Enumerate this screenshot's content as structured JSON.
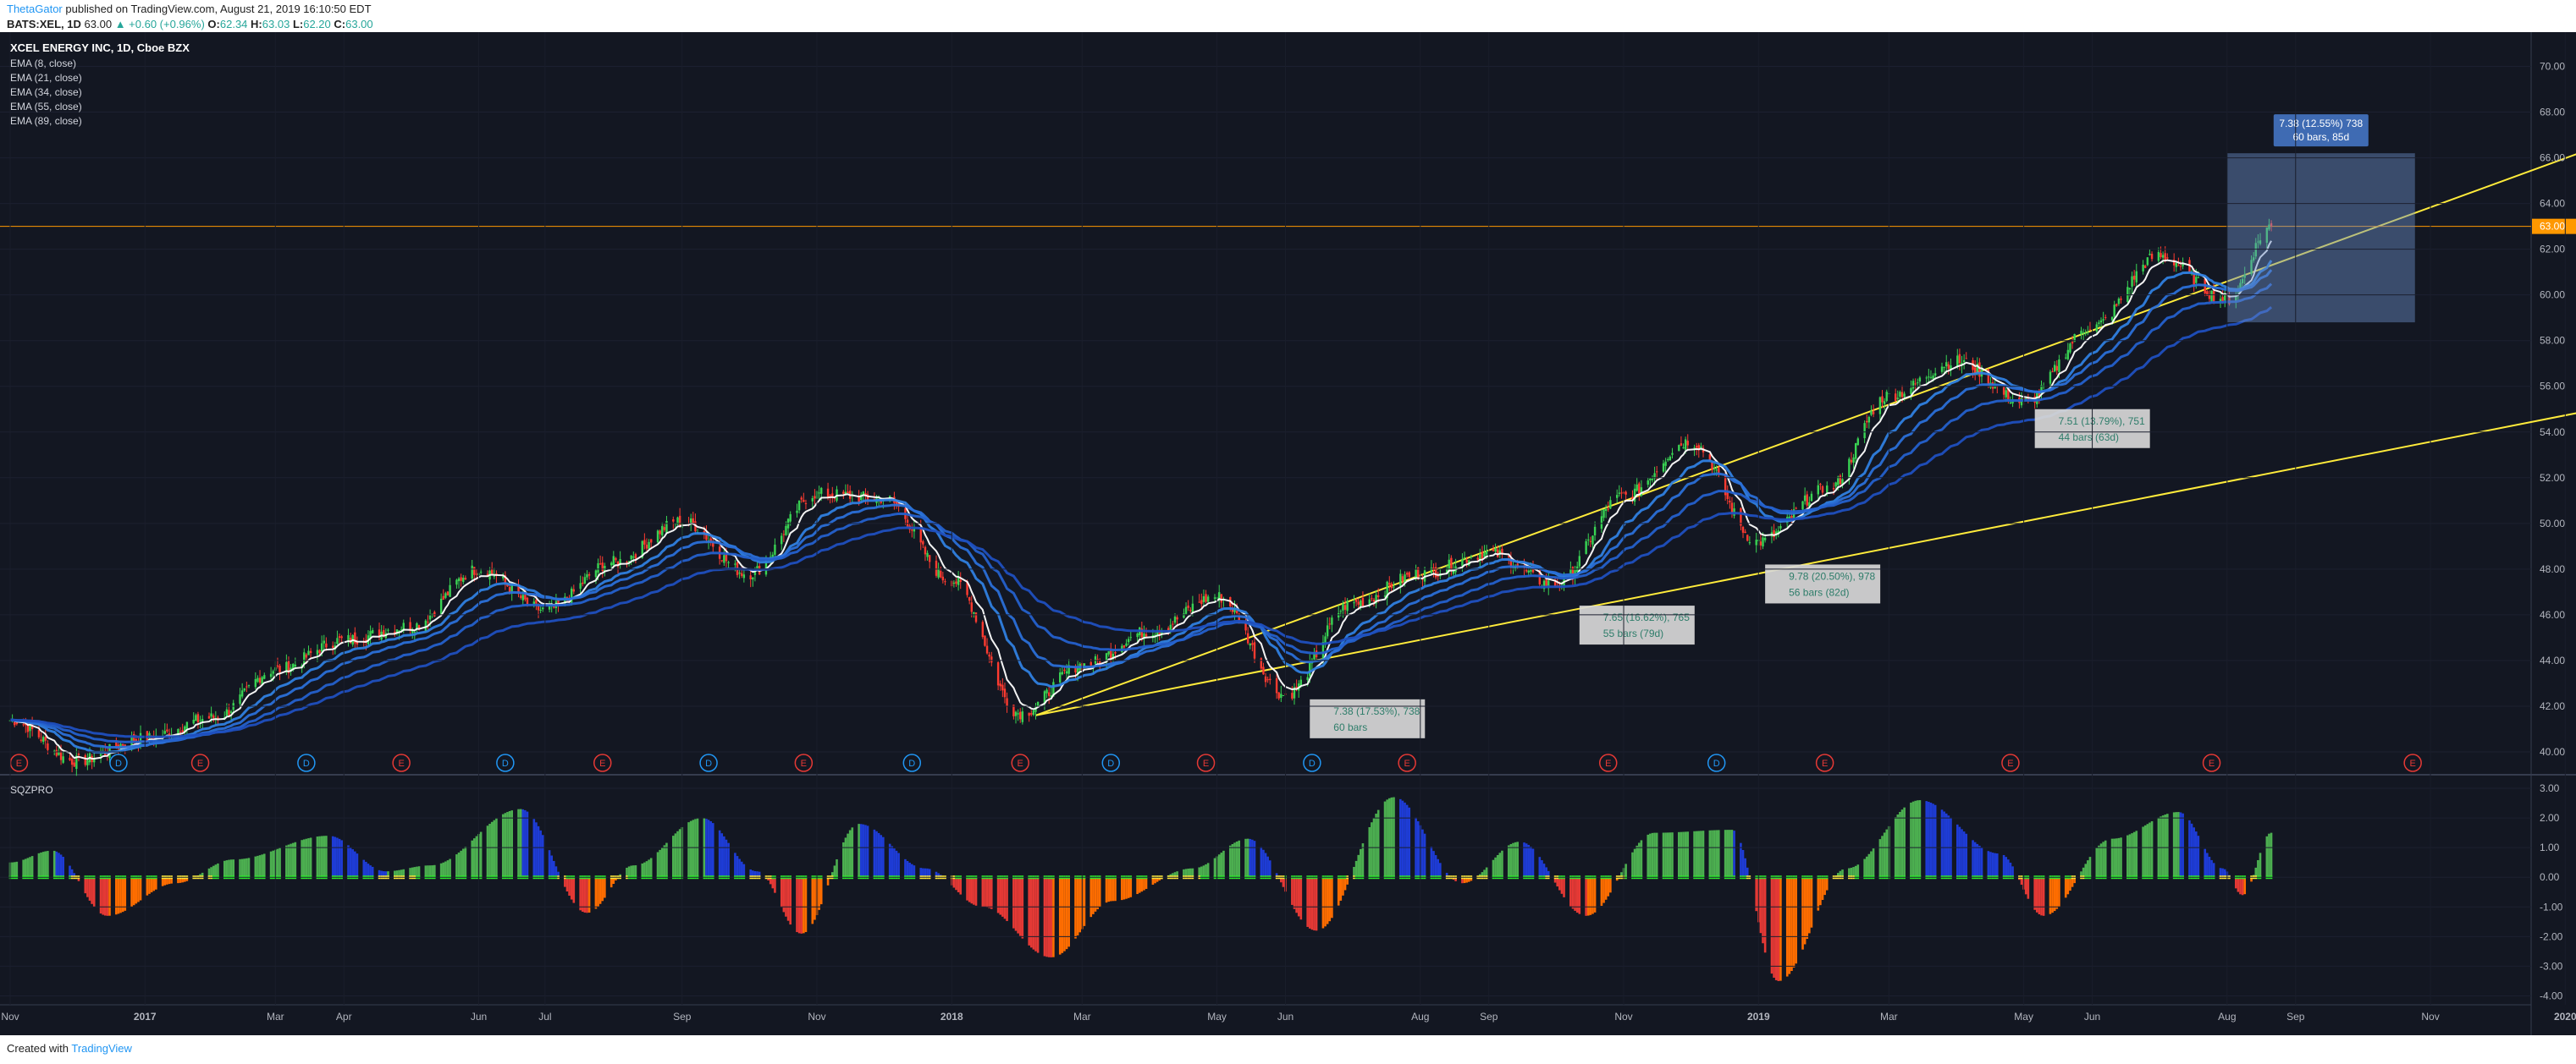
{
  "header": {
    "author": "ThetaGator",
    "published": "published on TradingView.com, August 21, 2019 16:10:50 EDT",
    "symbol": "BATS:XEL, 1D",
    "last": "63.00",
    "change": "▲ +0.60 (+0.96%)",
    "o_label": "O:",
    "o": "62.34",
    "h_label": "H:",
    "h": "63.03",
    "l_label": "L:",
    "l": "62.20",
    "c_label": "C:",
    "c": "63.00"
  },
  "footer": {
    "created_with": "Created with",
    "brand": "TradingView"
  },
  "colors": {
    "background": "#131722",
    "up": "#26a69a",
    "down": "#ef5350",
    "ema_fast": "#ffffff",
    "ema_blue": "#2962ff",
    "trendline": "#ffeb3b",
    "price_line": "#ff9800",
    "hist_green": "#4caf50",
    "hist_blue": "#1e3cd6",
    "hist_red": "#e53935",
    "hist_orange": "#ff6d00"
  },
  "chart_data": [
    {
      "type": "candlestick",
      "title": "XCEL ENERGY INC, 1D, Cboe BZX",
      "indicators": [
        "EMA (8, close)",
        "EMA (21, close)",
        "EMA (34, close)",
        "EMA (55, close)",
        "EMA (89, close)"
      ],
      "ylim": [
        39.0,
        71.5
      ],
      "y_ticks": [
        "40.00",
        "42.00",
        "44.00",
        "46.00",
        "48.00",
        "50.00",
        "52.00",
        "54.00",
        "56.00",
        "58.00",
        "60.00",
        "62.00",
        "64.00",
        "66.00",
        "68.00",
        "70.00"
      ],
      "last_price_label": "63.00",
      "last_price": 63.0,
      "x_ticks": [
        {
          "label": "Nov",
          "date": "2016-11-01"
        },
        {
          "label": "2017",
          "date": "2017-01-01"
        },
        {
          "label": "Mar",
          "date": "2017-03-01"
        },
        {
          "label": "Apr",
          "date": "2017-04-01"
        },
        {
          "label": "Jun",
          "date": "2017-06-01"
        },
        {
          "label": "Jul",
          "date": "2017-07-01"
        },
        {
          "label": "Sep",
          "date": "2017-09-01"
        },
        {
          "label": "Nov",
          "date": "2017-11-01"
        },
        {
          "label": "2018",
          "date": "2018-01-01"
        },
        {
          "label": "Mar",
          "date": "2018-03-01"
        },
        {
          "label": "May",
          "date": "2018-05-01"
        },
        {
          "label": "Jun",
          "date": "2018-06-01"
        },
        {
          "label": "Aug",
          "date": "2018-08-01"
        },
        {
          "label": "Sep",
          "date": "2018-09-01"
        },
        {
          "label": "Nov",
          "date": "2018-11-01"
        },
        {
          "label": "2019",
          "date": "2019-01-01"
        },
        {
          "label": "Mar",
          "date": "2019-03-01"
        },
        {
          "label": "May",
          "date": "2019-05-01"
        },
        {
          "label": "Jun",
          "date": "2019-06-01"
        },
        {
          "label": "Aug",
          "date": "2019-08-01"
        },
        {
          "label": "Sep",
          "date": "2019-09-01"
        },
        {
          "label": "Nov",
          "date": "2019-11-01"
        },
        {
          "label": "2020",
          "date": "2020-01-01"
        }
      ],
      "price_path": [
        {
          "date": "2016-11-01",
          "close": 41.4
        },
        {
          "date": "2016-12-01",
          "close": 39.6
        },
        {
          "date": "2017-01-01",
          "close": 40.6
        },
        {
          "date": "2017-02-01",
          "close": 41.5
        },
        {
          "date": "2017-03-01",
          "close": 43.6
        },
        {
          "date": "2017-04-01",
          "close": 44.9
        },
        {
          "date": "2017-05-01",
          "close": 45.5
        },
        {
          "date": "2017-06-01",
          "close": 48.0
        },
        {
          "date": "2017-07-01",
          "close": 46.2
        },
        {
          "date": "2017-08-01",
          "close": 48.3
        },
        {
          "date": "2017-09-01",
          "close": 50.1
        },
        {
          "date": "2017-10-01",
          "close": 47.8
        },
        {
          "date": "2017-11-01",
          "close": 51.3
        },
        {
          "date": "2017-12-01",
          "close": 51.1
        },
        {
          "date": "2018-01-01",
          "close": 47.5
        },
        {
          "date": "2018-02-01",
          "close": 41.7
        },
        {
          "date": "2018-03-01",
          "close": 43.8
        },
        {
          "date": "2018-04-01",
          "close": 45.3
        },
        {
          "date": "2018-05-01",
          "close": 46.8
        },
        {
          "date": "2018-06-01",
          "close": 42.5
        },
        {
          "date": "2018-07-01",
          "close": 46.5
        },
        {
          "date": "2018-08-01",
          "close": 47.8
        },
        {
          "date": "2018-09-01",
          "close": 48.7
        },
        {
          "date": "2018-10-01",
          "close": 47.3
        },
        {
          "date": "2018-11-01",
          "close": 51.2
        },
        {
          "date": "2018-12-01",
          "close": 53.6
        },
        {
          "date": "2019-01-01",
          "close": 49.2
        },
        {
          "date": "2019-02-01",
          "close": 51.5
        },
        {
          "date": "2019-03-01",
          "close": 55.6
        },
        {
          "date": "2019-04-01",
          "close": 57.1
        },
        {
          "date": "2019-05-01",
          "close": 55.3
        },
        {
          "date": "2019-06-01",
          "close": 58.6
        },
        {
          "date": "2019-07-01",
          "close": 61.7
        },
        {
          "date": "2019-08-01",
          "close": 59.8
        },
        {
          "date": "2019-08-21",
          "close": 63.0
        }
      ],
      "trendlines": [
        {
          "from": {
            "date": "2018-02-08",
            "price": 41.6
          },
          "to": {
            "date": "2020-01-10",
            "price": 66.3
          }
        },
        {
          "from": {
            "date": "2018-02-08",
            "price": 41.6
          },
          "to": {
            "date": "2020-01-10",
            "price": 54.9
          }
        }
      ],
      "measure_boxes": [
        {
          "line1": "7.38 (17.53%), 738",
          "line2": "60 bars",
          "date": "2018-06-12",
          "price": 42.3
        },
        {
          "line1": "7.65 (16.62%), 765",
          "line2": "55 bars (79d)",
          "date": "2018-10-12",
          "price": 46.4
        },
        {
          "line1": "9.78 (20.50%), 978",
          "line2": "56 bars (82d)",
          "date": "2019-01-04",
          "price": 48.2
        },
        {
          "line1": "7.51 (13.79%), 751",
          "line2": "44 bars (63d)",
          "date": "2019-05-06",
          "price": 55.0
        }
      ],
      "projection_box": {
        "label1": "7.38 (12.55%) 738",
        "label2": "60 bars, 85d",
        "from_date": "2019-08-01",
        "to_date": "2019-10-25",
        "low": 58.8,
        "high": 66.2
      },
      "events": [
        {
          "date": "2016-11-05",
          "type": "E"
        },
        {
          "date": "2016-12-20",
          "type": "D"
        },
        {
          "date": "2017-01-26",
          "type": "E"
        },
        {
          "date": "2017-03-15",
          "type": "D"
        },
        {
          "date": "2017-04-27",
          "type": "E"
        },
        {
          "date": "2017-06-13",
          "type": "D"
        },
        {
          "date": "2017-07-27",
          "type": "E"
        },
        {
          "date": "2017-09-13",
          "type": "D"
        },
        {
          "date": "2017-10-26",
          "type": "E"
        },
        {
          "date": "2017-12-14",
          "type": "D"
        },
        {
          "date": "2018-02-01",
          "type": "E"
        },
        {
          "date": "2018-03-14",
          "type": "D"
        },
        {
          "date": "2018-04-26",
          "type": "E"
        },
        {
          "date": "2018-06-13",
          "type": "D"
        },
        {
          "date": "2018-07-26",
          "type": "E"
        },
        {
          "date": "2018-10-25",
          "type": "E"
        },
        {
          "date": "2018-12-13",
          "type": "D"
        },
        {
          "date": "2019-01-31",
          "type": "E"
        },
        {
          "date": "2019-04-25",
          "type": "E"
        },
        {
          "date": "2019-07-25",
          "type": "E"
        },
        {
          "date": "2019-10-24",
          "type": "E"
        }
      ]
    },
    {
      "type": "bar",
      "title": "SQZPRO",
      "ylim": [
        -4.3,
        3.4
      ],
      "y_ticks": [
        "3.00",
        "2.00",
        "1.00",
        "0.00",
        "-1.00",
        "-2.00",
        "-3.00",
        "-4.00"
      ],
      "momentum_path": [
        {
          "date": "2016-11-01",
          "value": 0.5
        },
        {
          "date": "2016-11-20",
          "value": 0.9
        },
        {
          "date": "2016-12-15",
          "value": -1.3
        },
        {
          "date": "2017-01-15",
          "value": -0.2
        },
        {
          "date": "2017-02-10",
          "value": 0.6
        },
        {
          "date": "2017-03-25",
          "value": 1.4
        },
        {
          "date": "2017-04-20",
          "value": 0.2
        },
        {
          "date": "2017-05-10",
          "value": 0.4
        },
        {
          "date": "2017-06-20",
          "value": 2.3
        },
        {
          "date": "2017-07-20",
          "value": -1.2
        },
        {
          "date": "2017-08-10",
          "value": 0.4
        },
        {
          "date": "2017-09-10",
          "value": 2.0
        },
        {
          "date": "2017-10-05",
          "value": 0.2
        },
        {
          "date": "2017-10-25",
          "value": -1.9
        },
        {
          "date": "2017-11-20",
          "value": 1.8
        },
        {
          "date": "2017-12-20",
          "value": 0.3
        },
        {
          "date": "2018-01-15",
          "value": -1.0
        },
        {
          "date": "2018-02-15",
          "value": -2.7
        },
        {
          "date": "2018-03-15",
          "value": -0.8
        },
        {
          "date": "2018-04-20",
          "value": 0.3
        },
        {
          "date": "2018-05-15",
          "value": 1.3
        },
        {
          "date": "2018-06-15",
          "value": -1.8
        },
        {
          "date": "2018-07-20",
          "value": 2.7
        },
        {
          "date": "2018-08-20",
          "value": -0.2
        },
        {
          "date": "2018-09-15",
          "value": 1.2
        },
        {
          "date": "2018-10-15",
          "value": -1.3
        },
        {
          "date": "2018-11-15",
          "value": 1.5
        },
        {
          "date": "2018-12-20",
          "value": 1.6
        },
        {
          "date": "2019-01-10",
          "value": -3.5
        },
        {
          "date": "2019-02-10",
          "value": 0.3
        },
        {
          "date": "2019-03-15",
          "value": 2.6
        },
        {
          "date": "2019-04-20",
          "value": 0.8
        },
        {
          "date": "2019-05-10",
          "value": -1.3
        },
        {
          "date": "2019-06-10",
          "value": 1.3
        },
        {
          "date": "2019-07-10",
          "value": 2.2
        },
        {
          "date": "2019-07-30",
          "value": 0.3
        },
        {
          "date": "2019-08-08",
          "value": -0.6
        },
        {
          "date": "2019-08-21",
          "value": 1.5
        }
      ]
    }
  ]
}
